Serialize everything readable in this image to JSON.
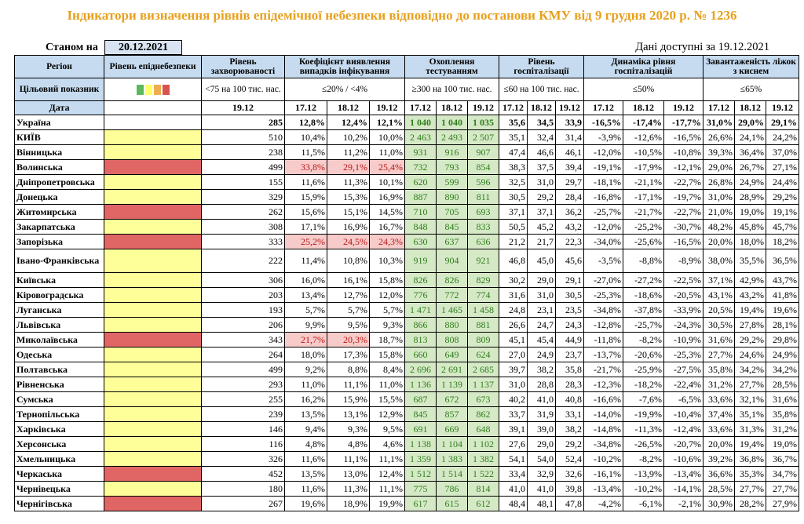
{
  "title": "Індикатори визначення рівнів епідемічної небезпеки відповідно до постанови КМУ від 9 грудня 2020 р. № 1236",
  "as_of_label": "Станом на",
  "as_of_date": "20.12.2021",
  "data_available": "Дані доступні за  19.12.2021",
  "header": {
    "region": "Регіон",
    "level": "Рівень епіднебезпеки",
    "morbidity": "Рівень захворюваності",
    "detection": "Коефіцієнт виявлення випадків інфікування",
    "testing": "Охоплення тестуванням",
    "hosp": "Рівень госпіталізації",
    "hosp_dyn": "Динаміка рівня госпіталізацій",
    "beds": "Завантаженість ліжок з киснем"
  },
  "target": {
    "label": "Цільовий показник",
    "morbidity": "<75 на 100 тис. нас.",
    "detection": "≤20% / <4%",
    "testing": "≥300 на 100 тис. нас.",
    "hosp": "≤60 на 100 тис. нас.",
    "hosp_dyn": "≤50%",
    "beds": "≤65%",
    "swatch_colors": [
      "#5cb85c",
      "#ffff66",
      "#f0ad4e",
      "#d9534f"
    ]
  },
  "dates": {
    "label": "Дата",
    "morbidity": "19.12",
    "d1": "17.12",
    "d2": "18.12",
    "d3": "19.12"
  },
  "rows": [
    {
      "region": "Україна",
      "level": "",
      "m": "285",
      "det": [
        "12,8%",
        "12,4%",
        "12,1%"
      ],
      "test": [
        "1 040",
        "1 040",
        "1 035"
      ],
      "hosp": [
        "35,6",
        "34,5",
        "33,9"
      ],
      "dyn": [
        "-16,5%",
        "-17,4%",
        "-17,7%"
      ],
      "beds": [
        "31,0%",
        "29,0%",
        "29,1%"
      ]
    },
    {
      "region": "КИЇВ",
      "level": "yellow",
      "m": "510",
      "det": [
        "10,4%",
        "10,2%",
        "10,0%"
      ],
      "test": [
        "2 463",
        "2 493",
        "2 507"
      ],
      "hosp": [
        "35,1",
        "32,4",
        "31,4"
      ],
      "dyn": [
        "-3,9%",
        "-12,6%",
        "-16,5%"
      ],
      "beds": [
        "26,6%",
        "24,1%",
        "24,2%"
      ]
    },
    {
      "region": "Вінницька",
      "level": "yellow",
      "m": "238",
      "det": [
        "11,5%",
        "11,2%",
        "11,0%"
      ],
      "test": [
        "931",
        "916",
        "907"
      ],
      "hosp": [
        "47,4",
        "46,6",
        "46,1"
      ],
      "dyn": [
        "-12,0%",
        "-10,5%",
        "-10,8%"
      ],
      "beds": [
        "39,3%",
        "36,4%",
        "37,0%"
      ]
    },
    {
      "region": "Волинська",
      "level": "red",
      "m": "499",
      "det": [
        "33,8%",
        "29,1%",
        "25,4%"
      ],
      "det_pink": true,
      "test": [
        "732",
        "793",
        "854"
      ],
      "hosp": [
        "38,3",
        "37,5",
        "39,4"
      ],
      "dyn": [
        "-19,1%",
        "-17,9%",
        "-12,1%"
      ],
      "beds": [
        "29,0%",
        "26,7%",
        "27,1%"
      ]
    },
    {
      "region": "Дніпропетровська",
      "level": "yellow",
      "m": "155",
      "det": [
        "11,6%",
        "11,3%",
        "10,1%"
      ],
      "test": [
        "620",
        "599",
        "596"
      ],
      "hosp": [
        "32,5",
        "31,0",
        "29,7"
      ],
      "dyn": [
        "-18,1%",
        "-21,1%",
        "-22,7%"
      ],
      "beds": [
        "26,8%",
        "24,9%",
        "24,4%"
      ]
    },
    {
      "region": "Донецька",
      "level": "yellow",
      "m": "329",
      "det": [
        "15,9%",
        "15,3%",
        "16,9%"
      ],
      "test": [
        "887",
        "890",
        "811"
      ],
      "hosp": [
        "30,5",
        "29,2",
        "28,4"
      ],
      "dyn": [
        "-16,8%",
        "-17,1%",
        "-19,7%"
      ],
      "beds": [
        "31,0%",
        "28,9%",
        "29,2%"
      ]
    },
    {
      "region": "Житомирська",
      "level": "red",
      "m": "262",
      "det": [
        "15,6%",
        "15,1%",
        "14,5%"
      ],
      "test": [
        "710",
        "705",
        "693"
      ],
      "hosp": [
        "37,1",
        "37,1",
        "36,2"
      ],
      "dyn": [
        "-25,7%",
        "-21,7%",
        "-22,7%"
      ],
      "beds": [
        "21,0%",
        "19,0%",
        "19,1%"
      ]
    },
    {
      "region": "Закарпатська",
      "level": "yellow",
      "m": "308",
      "det": [
        "17,1%",
        "16,9%",
        "16,7%"
      ],
      "test": [
        "848",
        "845",
        "833"
      ],
      "hosp": [
        "50,5",
        "45,2",
        "43,2"
      ],
      "dyn": [
        "-12,0%",
        "-25,2%",
        "-30,7%"
      ],
      "beds": [
        "48,2%",
        "45,8%",
        "45,7%"
      ]
    },
    {
      "region": "Запорізька",
      "level": "red",
      "m": "333",
      "det": [
        "25,2%",
        "24,5%",
        "24,3%"
      ],
      "det_pink": true,
      "test": [
        "630",
        "637",
        "636"
      ],
      "hosp": [
        "21,2",
        "21,7",
        "22,3"
      ],
      "dyn": [
        "-34,0%",
        "-25,6%",
        "-16,5%"
      ],
      "beds": [
        "20,0%",
        "18,0%",
        "18,2%"
      ]
    },
    {
      "region": "Івано-Франківська",
      "level": "yellow",
      "m": "222",
      "det": [
        "11,4%",
        "10,8%",
        "10,3%"
      ],
      "test": [
        "919",
        "904",
        "921"
      ],
      "hosp": [
        "46,8",
        "45,0",
        "45,6"
      ],
      "dyn": [
        "-3,5%",
        "-8,8%",
        "-8,9%"
      ],
      "beds": [
        "38,0%",
        "35,5%",
        "36,5%"
      ],
      "tall": true
    },
    {
      "region": "Київська",
      "level": "yellow",
      "m": "306",
      "det": [
        "16,0%",
        "16,1%",
        "15,8%"
      ],
      "test": [
        "826",
        "826",
        "829"
      ],
      "hosp": [
        "30,2",
        "29,0",
        "29,1"
      ],
      "dyn": [
        "-27,0%",
        "-27,2%",
        "-22,5%"
      ],
      "beds": [
        "37,1%",
        "42,9%",
        "43,7%"
      ]
    },
    {
      "region": "Кіровоградська",
      "level": "yellow",
      "m": "203",
      "det": [
        "13,4%",
        "12,7%",
        "12,0%"
      ],
      "test": [
        "776",
        "772",
        "774"
      ],
      "hosp": [
        "31,6",
        "31,0",
        "30,5"
      ],
      "dyn": [
        "-25,3%",
        "-18,6%",
        "-20,5%"
      ],
      "beds": [
        "43,1%",
        "43,2%",
        "41,8%"
      ]
    },
    {
      "region": "Луганська",
      "level": "yellow",
      "m": "193",
      "det": [
        "5,7%",
        "5,7%",
        "5,7%"
      ],
      "test": [
        "1 471",
        "1 465",
        "1 458"
      ],
      "hosp": [
        "24,8",
        "23,1",
        "23,5"
      ],
      "dyn": [
        "-34,8%",
        "-37,8%",
        "-33,9%"
      ],
      "beds": [
        "20,5%",
        "19,4%",
        "19,6%"
      ]
    },
    {
      "region": "Львівська",
      "level": "yellow",
      "m": "206",
      "det": [
        "9,9%",
        "9,5%",
        "9,3%"
      ],
      "test": [
        "866",
        "880",
        "881"
      ],
      "hosp": [
        "26,6",
        "24,7",
        "24,3"
      ],
      "dyn": [
        "-12,8%",
        "-25,7%",
        "-24,3%"
      ],
      "beds": [
        "30,5%",
        "27,8%",
        "28,1%"
      ]
    },
    {
      "region": "Миколаївська",
      "level": "red",
      "m": "343",
      "det": [
        "21,7%",
        "20,3%",
        "18,7%"
      ],
      "det_pink2": true,
      "test": [
        "813",
        "808",
        "809"
      ],
      "hosp": [
        "45,1",
        "45,4",
        "44,9"
      ],
      "dyn": [
        "-11,8%",
        "-8,2%",
        "-10,9%"
      ],
      "beds": [
        "31,6%",
        "29,2%",
        "29,8%"
      ]
    },
    {
      "region": "Одеська",
      "level": "yellow",
      "m": "264",
      "det": [
        "18,0%",
        "17,3%",
        "15,8%"
      ],
      "test": [
        "660",
        "649",
        "624"
      ],
      "hosp": [
        "27,0",
        "24,9",
        "23,7"
      ],
      "dyn": [
        "-13,7%",
        "-20,6%",
        "-25,3%"
      ],
      "beds": [
        "27,7%",
        "24,6%",
        "24,9%"
      ]
    },
    {
      "region": "Полтавська",
      "level": "yellow",
      "m": "499",
      "det": [
        "9,2%",
        "8,8%",
        "8,4%"
      ],
      "test": [
        "2 696",
        "2 691",
        "2 685"
      ],
      "hosp": [
        "39,7",
        "38,2",
        "35,8"
      ],
      "dyn": [
        "-21,7%",
        "-25,9%",
        "-27,5%"
      ],
      "beds": [
        "35,8%",
        "34,2%",
        "34,2%"
      ]
    },
    {
      "region": "Рівненська",
      "level": "yellow",
      "m": "293",
      "det": [
        "11,0%",
        "11,1%",
        "11,0%"
      ],
      "test": [
        "1 136",
        "1 139",
        "1 137"
      ],
      "hosp": [
        "31,0",
        "28,8",
        "28,3"
      ],
      "dyn": [
        "-12,3%",
        "-18,2%",
        "-22,4%"
      ],
      "beds": [
        "31,2%",
        "27,7%",
        "28,5%"
      ]
    },
    {
      "region": "Сумська",
      "level": "yellow",
      "m": "255",
      "det": [
        "16,2%",
        "15,9%",
        "15,5%"
      ],
      "test": [
        "687",
        "672",
        "673"
      ],
      "hosp": [
        "40,2",
        "41,0",
        "40,8"
      ],
      "dyn": [
        "-16,6%",
        "-7,6%",
        "-6,5%"
      ],
      "beds": [
        "33,6%",
        "32,1%",
        "31,6%"
      ]
    },
    {
      "region": "Тернопільська",
      "level": "yellow",
      "m": "239",
      "det": [
        "13,5%",
        "13,1%",
        "12,9%"
      ],
      "test": [
        "845",
        "857",
        "862"
      ],
      "hosp": [
        "33,7",
        "31,9",
        "33,1"
      ],
      "dyn": [
        "-14,0%",
        "-19,9%",
        "-10,4%"
      ],
      "beds": [
        "37,4%",
        "35,1%",
        "35,8%"
      ]
    },
    {
      "region": "Харківська",
      "level": "yellow",
      "m": "146",
      "det": [
        "9,4%",
        "9,3%",
        "9,5%"
      ],
      "test": [
        "691",
        "669",
        "648"
      ],
      "hosp": [
        "39,1",
        "39,0",
        "38,2"
      ],
      "dyn": [
        "-14,8%",
        "-11,3%",
        "-12,4%"
      ],
      "beds": [
        "33,6%",
        "31,3%",
        "31,2%"
      ]
    },
    {
      "region": "Херсонська",
      "level": "yellow",
      "m": "116",
      "det": [
        "4,8%",
        "4,8%",
        "4,6%"
      ],
      "test": [
        "1 138",
        "1 104",
        "1 102"
      ],
      "hosp": [
        "27,6",
        "29,0",
        "29,2"
      ],
      "dyn": [
        "-34,8%",
        "-26,5%",
        "-20,7%"
      ],
      "beds": [
        "20,0%",
        "19,4%",
        "19,0%"
      ]
    },
    {
      "region": "Хмельницька",
      "level": "yellow",
      "m": "326",
      "det": [
        "11,6%",
        "11,1%",
        "11,1%"
      ],
      "test": [
        "1 359",
        "1 383",
        "1 382"
      ],
      "hosp": [
        "54,1",
        "54,0",
        "52,4"
      ],
      "dyn": [
        "-10,2%",
        "-8,2%",
        "-10,6%"
      ],
      "beds": [
        "39,2%",
        "36,8%",
        "36,7%"
      ]
    },
    {
      "region": "Черкаська",
      "level": "red",
      "m": "452",
      "det": [
        "13,5%",
        "13,0%",
        "12,4%"
      ],
      "test": [
        "1 512",
        "1 514",
        "1 522"
      ],
      "hosp": [
        "33,4",
        "32,9",
        "32,6"
      ],
      "dyn": [
        "-16,1%",
        "-13,9%",
        "-13,4%"
      ],
      "beds": [
        "36,6%",
        "35,3%",
        "34,7%"
      ]
    },
    {
      "region": "Чернівецька",
      "level": "yellow",
      "m": "180",
      "det": [
        "11,6%",
        "11,3%",
        "11,1%"
      ],
      "test": [
        "775",
        "786",
        "814"
      ],
      "hosp": [
        "41,0",
        "41,0",
        "39,8"
      ],
      "dyn": [
        "-13,4%",
        "-10,2%",
        "-14,1%"
      ],
      "beds": [
        "28,5%",
        "27,7%",
        "27,7%"
      ]
    },
    {
      "region": "Чернігівська",
      "level": "red",
      "m": "267",
      "det": [
        "19,6%",
        "18,9%",
        "19,9%"
      ],
      "test": [
        "617",
        "615",
        "612"
      ],
      "hosp": [
        "48,4",
        "48,1",
        "47,8"
      ],
      "dyn": [
        "-4,2%",
        "-6,1%",
        "-2,1%"
      ],
      "beds": [
        "30,9%",
        "28,2%",
        "27,9%"
      ]
    }
  ]
}
